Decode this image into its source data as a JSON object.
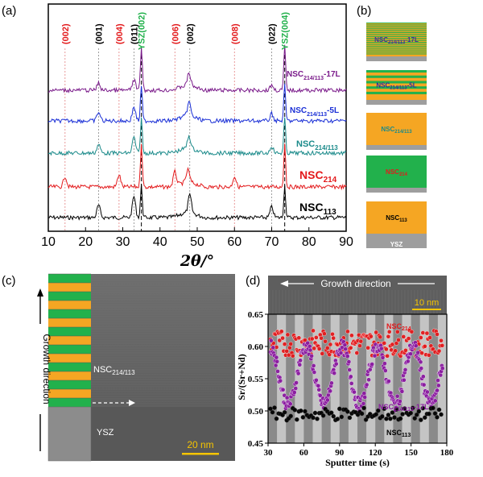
{
  "panels": {
    "a": "(a)",
    "b": "(b)",
    "c": "(c)",
    "d": "(d)"
  },
  "xrd": {
    "xlabel": "2θ/°",
    "x_ticks": [
      "10",
      "20",
      "30",
      "40",
      "50",
      "60",
      "70",
      "80",
      "90"
    ],
    "peak_labels": [
      {
        "text": "(002)",
        "color": "#e31a1c",
        "x": 14.5
      },
      {
        "text": "(001)",
        "color": "#000000",
        "x": 23.5
      },
      {
        "text": "(004)",
        "color": "#e31a1c",
        "x": 29
      },
      {
        "text": "(011)",
        "color": "#000000",
        "x": 33
      },
      {
        "text": "YSZ(002)",
        "color": "#22b14c",
        "x": 35
      },
      {
        "text": "(006)",
        "color": "#e31a1c",
        "x": 44
      },
      {
        "text": "(002)",
        "color": "#000000",
        "x": 48
      },
      {
        "text": "(008)",
        "color": "#e31a1c",
        "x": 60
      },
      {
        "text": "(022)",
        "color": "#000000",
        "x": 70
      },
      {
        "text": "YSZ(004)",
        "color": "#22b14c",
        "x": 73.5
      }
    ],
    "series": [
      {
        "name": "NSC113",
        "main": "NSC",
        "sub": "113",
        "suffix": "",
        "color": "#000000",
        "size": 14
      },
      {
        "name": "NSC214",
        "main": "NSC",
        "sub": "214",
        "suffix": "",
        "color": "#e31a1c",
        "size": 14
      },
      {
        "name": "NSC214/113",
        "main": "NSC",
        "sub": "214/113",
        "suffix": "",
        "color": "#1a8a8a",
        "size": 11
      },
      {
        "name": "NSC214/113-5L",
        "main": "NSC",
        "sub": "214/113",
        "suffix": "-5L",
        "color": "#1a2fd6",
        "size": 10
      },
      {
        "name": "NSC214/113-17L",
        "main": "NSC",
        "sub": "214/113",
        "suffix": "-17L",
        "color": "#7a1a8a",
        "size": 10
      }
    ]
  },
  "schematics": [
    {
      "label_main": "NSC",
      "label_sub": "214/113",
      "label_suffix": "-17L",
      "label_color": "#4a2a9a"
    },
    {
      "label_main": "NSC",
      "label_sub": "214/113",
      "label_suffix": "-5L",
      "label_color": "#2a2aa0"
    },
    {
      "label_main": "NSC",
      "label_sub": "214/113",
      "label_suffix": "",
      "label_color": "#1a8a8a"
    },
    {
      "label_main": "NSC",
      "label_sub": "214",
      "label_suffix": "",
      "label_color": "#e31a1c"
    },
    {
      "label_main": "NSC",
      "label_sub": "113",
      "label_suffix": "",
      "label_color": "#000000"
    }
  ],
  "substrate_label": "YSZ",
  "colors": {
    "orange": "#f5a623",
    "green": "#22b14c",
    "gray": "#9e9e9e"
  },
  "tem": {
    "film_main": "NSC",
    "film_sub": "214/113",
    "substrate": "YSZ",
    "scale": "20 nm",
    "side_label": "Growth direction"
  },
  "eels": {
    "image_label": "Growth direction",
    "scale": "10 nm",
    "ylabel": "Sr/(Sr+Nd)",
    "xlabel": "Sputter time (s)",
    "y_ticks": [
      "0.45",
      "0.50",
      "0.55",
      "0.60",
      "0.65"
    ],
    "x_ticks": [
      "30",
      "60",
      "90",
      "120",
      "150",
      "180"
    ],
    "series_labels": [
      {
        "main": "NSC",
        "sub": "214",
        "suffix": "",
        "color": "#e31a1c"
      },
      {
        "main": "NSC",
        "sub": "214/113",
        "suffix": "-17L",
        "color": "#8a1aa0"
      },
      {
        "main": "NSC",
        "sub": "113",
        "suffix": "",
        "color": "#000000"
      }
    ]
  },
  "chart_data": [
    {
      "type": "line",
      "xlim": [
        10,
        90
      ],
      "x_ticks": [
        10,
        20,
        30,
        40,
        50,
        60,
        70,
        80,
        90
      ],
      "xlabel": "2θ/°",
      "series": [
        {
          "name": "NSC113",
          "peaks": [
            [
              23.5,
              0.7
            ],
            [
              33.0,
              1.2
            ],
            [
              35.0,
              1.8
            ],
            [
              48.0,
              1.0
            ],
            [
              70.0,
              0.6
            ],
            [
              73.5,
              1.8
            ]
          ]
        },
        {
          "name": "NSC214",
          "peaks": [
            [
              14.5,
              0.6
            ],
            [
              29.0,
              0.7
            ],
            [
              35.0,
              2.5
            ],
            [
              44.0,
              0.8
            ],
            [
              47.5,
              0.7
            ],
            [
              60.0,
              0.6
            ],
            [
              73.5,
              2.5
            ]
          ]
        },
        {
          "name": "NSC214/113",
          "peaks": [
            [
              23.5,
              0.5
            ],
            [
              33.0,
              0.9
            ],
            [
              35.0,
              2.0
            ],
            [
              47.8,
              0.7
            ],
            [
              70.0,
              0.4
            ],
            [
              73.5,
              2.0
            ]
          ]
        },
        {
          "name": "NSC214/113-5L",
          "peaks": [
            [
              23.5,
              0.5
            ],
            [
              33.0,
              0.8
            ],
            [
              35.0,
              2.0
            ],
            [
              47.8,
              0.8
            ],
            [
              70.0,
              0.4
            ],
            [
              73.5,
              2.0
            ]
          ]
        },
        {
          "name": "NSC214/113-17L",
          "peaks": [
            [
              23.5,
              0.4
            ],
            [
              33.0,
              0.6
            ],
            [
              35.0,
              2.5
            ],
            [
              47.8,
              0.7
            ],
            [
              70.0,
              0.3
            ],
            [
              73.5,
              2.5
            ]
          ]
        }
      ]
    },
    {
      "type": "scatter",
      "xlim": [
        30,
        180
      ],
      "ylim": [
        0.45,
        0.65
      ],
      "x_ticks": [
        30,
        60,
        90,
        120,
        150,
        180
      ],
      "y_ticks": [
        0.45,
        0.5,
        0.55,
        0.6,
        0.65
      ],
      "xlabel": "Sputter time (s)",
      "ylabel": "Sr/(Sr+Nd)",
      "series": [
        {
          "name": "NSC214",
          "mean": 0.605,
          "spread": 0.02
        },
        {
          "name": "NSC214/113-17L",
          "mean": 0.555,
          "amplitude": 0.045,
          "period": 30
        },
        {
          "name": "NSC113",
          "mean": 0.495,
          "spread": 0.01
        }
      ]
    }
  ]
}
